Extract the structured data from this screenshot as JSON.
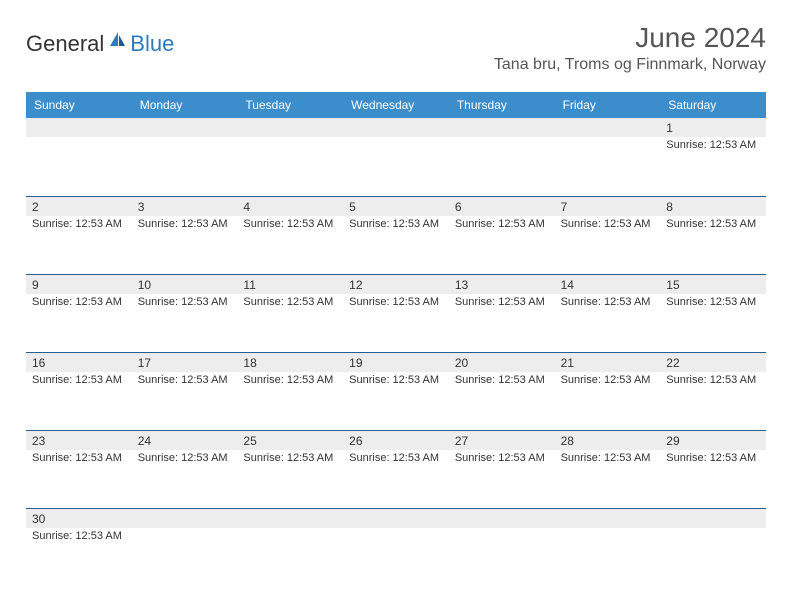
{
  "logo": {
    "general": "General",
    "blue": "Blue"
  },
  "title": "June 2024",
  "location": "Tana bru, Troms og Finnmark, Norway",
  "colors": {
    "header_bg": "#3c8dcc",
    "week_border": "#2b5f8f",
    "daynum_bg": "#ededed",
    "logo_blue": "#2b7bbf",
    "text": "#333333"
  },
  "day_names": [
    "Sunday",
    "Monday",
    "Tuesday",
    "Wednesday",
    "Thursday",
    "Friday",
    "Saturday"
  ],
  "sunrise_label_prefix": "Sunrise: ",
  "sunrise_time": "12:53 AM",
  "weeks": [
    [
      {
        "n": "",
        "t": ""
      },
      {
        "n": "",
        "t": ""
      },
      {
        "n": "",
        "t": ""
      },
      {
        "n": "",
        "t": ""
      },
      {
        "n": "",
        "t": ""
      },
      {
        "n": "",
        "t": ""
      },
      {
        "n": "1",
        "t": "Sunrise: 12:53 AM"
      }
    ],
    [
      {
        "n": "2",
        "t": "Sunrise: 12:53 AM"
      },
      {
        "n": "3",
        "t": "Sunrise: 12:53 AM"
      },
      {
        "n": "4",
        "t": "Sunrise: 12:53 AM"
      },
      {
        "n": "5",
        "t": "Sunrise: 12:53 AM"
      },
      {
        "n": "6",
        "t": "Sunrise: 12:53 AM"
      },
      {
        "n": "7",
        "t": "Sunrise: 12:53 AM"
      },
      {
        "n": "8",
        "t": "Sunrise: 12:53 AM"
      }
    ],
    [
      {
        "n": "9",
        "t": "Sunrise: 12:53 AM"
      },
      {
        "n": "10",
        "t": "Sunrise: 12:53 AM"
      },
      {
        "n": "11",
        "t": "Sunrise: 12:53 AM"
      },
      {
        "n": "12",
        "t": "Sunrise: 12:53 AM"
      },
      {
        "n": "13",
        "t": "Sunrise: 12:53 AM"
      },
      {
        "n": "14",
        "t": "Sunrise: 12:53 AM"
      },
      {
        "n": "15",
        "t": "Sunrise: 12:53 AM"
      }
    ],
    [
      {
        "n": "16",
        "t": "Sunrise: 12:53 AM"
      },
      {
        "n": "17",
        "t": "Sunrise: 12:53 AM"
      },
      {
        "n": "18",
        "t": "Sunrise: 12:53 AM"
      },
      {
        "n": "19",
        "t": "Sunrise: 12:53 AM"
      },
      {
        "n": "20",
        "t": "Sunrise: 12:53 AM"
      },
      {
        "n": "21",
        "t": "Sunrise: 12:53 AM"
      },
      {
        "n": "22",
        "t": "Sunrise: 12:53 AM"
      }
    ],
    [
      {
        "n": "23",
        "t": "Sunrise: 12:53 AM"
      },
      {
        "n": "24",
        "t": "Sunrise: 12:53 AM"
      },
      {
        "n": "25",
        "t": "Sunrise: 12:53 AM"
      },
      {
        "n": "26",
        "t": "Sunrise: 12:53 AM"
      },
      {
        "n": "27",
        "t": "Sunrise: 12:53 AM"
      },
      {
        "n": "28",
        "t": "Sunrise: 12:53 AM"
      },
      {
        "n": "29",
        "t": "Sunrise: 12:53 AM"
      }
    ],
    [
      {
        "n": "30",
        "t": "Sunrise: 12:53 AM"
      },
      {
        "n": "",
        "t": ""
      },
      {
        "n": "",
        "t": ""
      },
      {
        "n": "",
        "t": ""
      },
      {
        "n": "",
        "t": ""
      },
      {
        "n": "",
        "t": ""
      },
      {
        "n": "",
        "t": ""
      }
    ]
  ]
}
